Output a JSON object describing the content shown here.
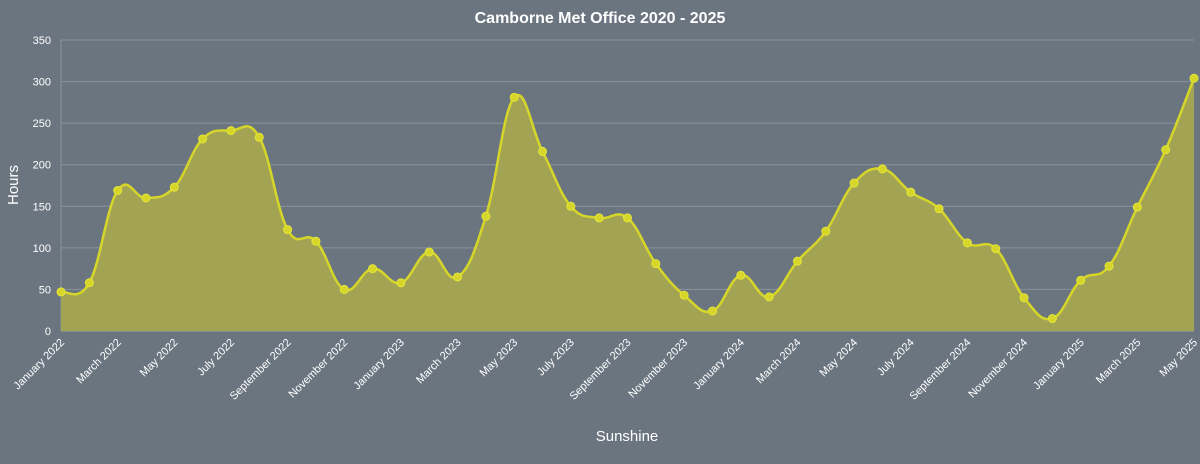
{
  "chart_data": {
    "type": "area",
    "title": "Camborne Met Office 2020 - 2025",
    "xlabel": "Sunshine",
    "ylabel": "Hours",
    "ylim": [
      0,
      350
    ],
    "yticks": [
      0,
      50,
      100,
      150,
      200,
      250,
      300,
      350
    ],
    "grid": true,
    "legend": "none",
    "colors": {
      "line": "#d6d62a",
      "fill": "#a3a354",
      "grid": "#8a939c",
      "background": "#6b7580"
    },
    "categories": [
      "January 2022",
      "February 2022",
      "March 2022",
      "April 2022",
      "May 2022",
      "June 2022",
      "July 2022",
      "August 2022",
      "September 2022",
      "October 2022",
      "November 2022",
      "December 2022",
      "January 2023",
      "February 2023",
      "March 2023",
      "April 2023",
      "May 2023",
      "June 2023",
      "July 2023",
      "August 2023",
      "September 2023",
      "October 2023",
      "November 2023",
      "December 2023",
      "January 2024",
      "February 2024",
      "March 2024",
      "April 2024",
      "May 2024",
      "June 2024",
      "July 2024",
      "August 2024",
      "September 2024",
      "October 2024",
      "November 2024",
      "December 2024",
      "January 2025",
      "February 2025",
      "March 2025",
      "April 2025",
      "May 2025"
    ],
    "tick_labels": [
      "January 2022",
      "March 2022",
      "May 2022",
      "July 2022",
      "September 2022",
      "November 2022",
      "January 2023",
      "March 2023",
      "May 2023",
      "July 2023",
      "September 2023",
      "November 2023",
      "January 2024",
      "March 2024",
      "May 2024",
      "July 2024",
      "September 2024",
      "November 2024",
      "January 2025",
      "March 2025",
      "May 2025"
    ],
    "series": [
      {
        "values": [
          47,
          58,
          169,
          160,
          173,
          231,
          241,
          233,
          122,
          108,
          50,
          75,
          58,
          95,
          65,
          138,
          281,
          216,
          150,
          136,
          136,
          81,
          43,
          24,
          67,
          41,
          84,
          120,
          178,
          195,
          167,
          147,
          106,
          99,
          40,
          15,
          61,
          78,
          149,
          218,
          304
        ]
      }
    ]
  }
}
